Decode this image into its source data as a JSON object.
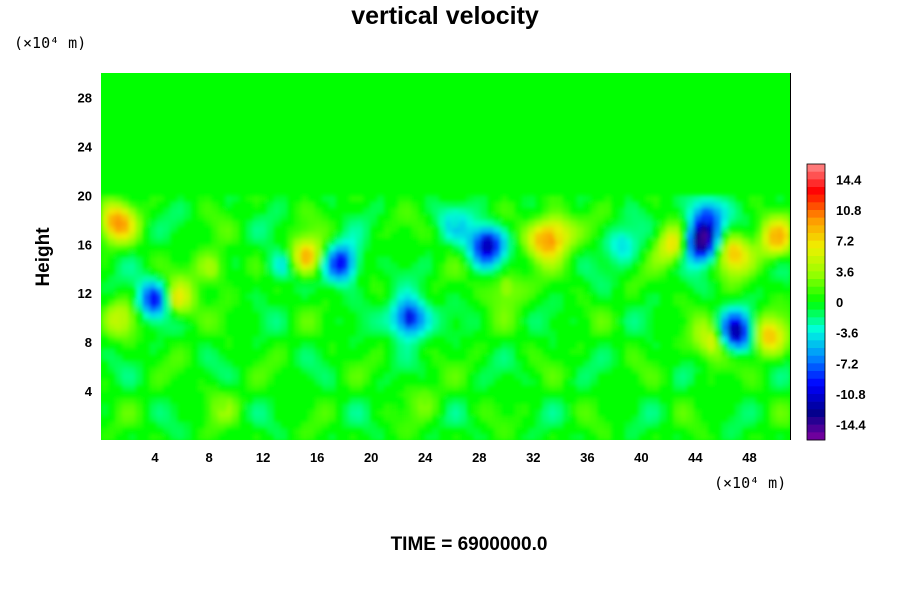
{
  "chart_data": {
    "type": "heatmap",
    "title": "vertical velocity",
    "ylabel": "Height",
    "y_unit": "(×10⁴ m)",
    "x_unit": "(×10⁴ m)",
    "xlim": [
      0,
      51
    ],
    "ylim": [
      0,
      30
    ],
    "x_ticks": [
      "4",
      "8",
      "12",
      "16",
      "20",
      "24",
      "28",
      "32",
      "36",
      "40",
      "44",
      "48"
    ],
    "y_ticks": [
      "4",
      "8",
      "12",
      "16",
      "20",
      "24",
      "28"
    ],
    "colorbar": {
      "range": [
        -16.2,
        16.2
      ],
      "labels": [
        "14.4",
        "10.8",
        "7.2",
        "3.6",
        "0",
        "-3.6",
        "-7.2",
        "-10.8",
        "-14.4"
      ]
    },
    "background_value": 0,
    "disturbed_layer_top": 20,
    "features": [
      {
        "x": 1.2,
        "y": 17.8,
        "value": 9
      },
      {
        "x": 5.6,
        "y": 11.5,
        "value": 7
      },
      {
        "x": 4.0,
        "y": 11.5,
        "value": -10
      },
      {
        "x": 15.2,
        "y": 15.0,
        "value": 9
      },
      {
        "x": 17.8,
        "y": 14.5,
        "value": -10
      },
      {
        "x": 13.4,
        "y": 14.3,
        "value": -4
      },
      {
        "x": 22.8,
        "y": 10.0,
        "value": -11
      },
      {
        "x": 28.6,
        "y": 16.0,
        "value": -12
      },
      {
        "x": 32.8,
        "y": 16.3,
        "value": 8
      },
      {
        "x": 33.8,
        "y": 17.0,
        "value": 6
      },
      {
        "x": 38.6,
        "y": 16.0,
        "value": -4
      },
      {
        "x": 42.3,
        "y": 16.0,
        "value": 7
      },
      {
        "x": 44.4,
        "y": 16.2,
        "value": -14
      },
      {
        "x": 44.8,
        "y": 18.3,
        "value": -8
      },
      {
        "x": 46.8,
        "y": 15.3,
        "value": 8
      },
      {
        "x": 50.0,
        "y": 16.5,
        "value": 8
      },
      {
        "x": 47.0,
        "y": 8.8,
        "value": -12
      },
      {
        "x": 49.4,
        "y": 8.5,
        "value": 8
      },
      {
        "x": 45.2,
        "y": 8.0,
        "value": 6
      },
      {
        "x": 8.2,
        "y": 14.0,
        "value": 4
      },
      {
        "x": 30.0,
        "y": 12.5,
        "value": 4
      },
      {
        "x": 1.5,
        "y": 10.0,
        "value": 4
      },
      {
        "x": 26.2,
        "y": 18.0,
        "value": -3
      },
      {
        "x": 9.0,
        "y": 3.0,
        "value": 2
      },
      {
        "x": 24.0,
        "y": 3.5,
        "value": 2
      }
    ]
  },
  "footer": "TIME = 6900000.0"
}
